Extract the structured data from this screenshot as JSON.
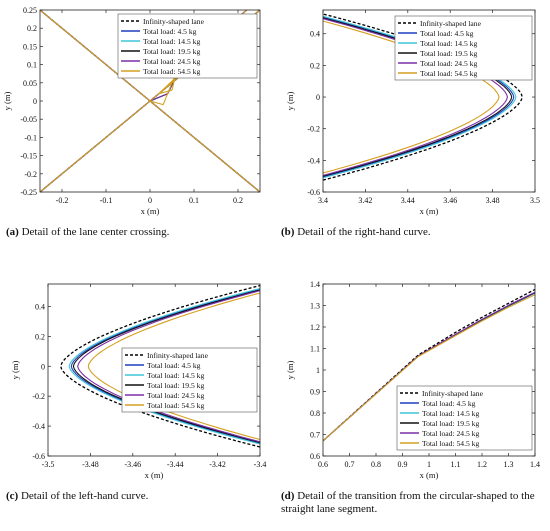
{
  "legend_labels": [
    "Infinity-shaped lane",
    "Total load: 4.5 kg",
    "Total load: 14.5 kg",
    "Total load: 19.5 kg",
    "Total load: 24.5 kg",
    "Total load: 54.5 kg"
  ],
  "captions": [
    {
      "letter": "(a)",
      "text": " Detail of the lane center crossing."
    },
    {
      "letter": "(b)",
      "text": " Detail of the right-hand curve."
    },
    {
      "letter": "(c)",
      "text": " Detail of the left-hand curve."
    },
    {
      "letter": "(d)",
      "text": " Detail of the transition from the circular-shaped to the straight lane segment."
    }
  ],
  "chart_data": [
    {
      "type": "line",
      "panel": "a",
      "xlabel": "x (m)",
      "ylabel": "y (m)",
      "xlim": [
        -0.25,
        0.25
      ],
      "ylim": [
        -0.25,
        0.25
      ],
      "xticks": [
        -0.2,
        -0.1,
        0,
        0.1,
        0.2
      ],
      "xticklabels": [
        "-0.2",
        "-0.1",
        "0",
        "0.1",
        "0.2"
      ],
      "yticks": [
        -0.25,
        -0.2,
        -0.15,
        -0.1,
        -0.05,
        0,
        0.05,
        0.1,
        0.15,
        0.2,
        0.25
      ],
      "yticklabels": [
        "-0.25",
        "-0.2",
        "-0.15",
        "-0.1",
        "-0.05",
        "0",
        "0.05",
        "0.1",
        "0.15",
        "0.2",
        "0.25"
      ],
      "legend_position": "top-right",
      "series": [
        {
          "name": "Infinity-shaped lane",
          "color": "#000000",
          "dash": true,
          "segments": [
            [
              [
                -0.25,
                -0.25
              ],
              [
                0.25,
                0.25
              ]
            ],
            [
              [
                -0.25,
                0.25
              ],
              [
                0.25,
                -0.25
              ]
            ]
          ]
        },
        {
          "name": "Total load: 4.5 kg",
          "color": "#1f3fbf",
          "segments": [
            [
              [
                -0.25,
                -0.25
              ],
              [
                0.25,
                0.25
              ]
            ],
            [
              [
                -0.25,
                0.25
              ],
              [
                0.25,
                -0.25
              ]
            ],
            [
              [
                0,
                0
              ],
              [
                0.04,
                0.02
              ],
              [
                0.07,
                0.09
              ],
              [
                0.22,
                0.25
              ]
            ]
          ]
        },
        {
          "name": "Total load: 14.5 kg",
          "color": "#3fc6d8",
          "segments": [
            [
              [
                -0.25,
                -0.25
              ],
              [
                0.25,
                0.25
              ]
            ],
            [
              [
                -0.25,
                0.25
              ],
              [
                0.25,
                -0.25
              ]
            ],
            [
              [
                0,
                0
              ],
              [
                0.04,
                0.02
              ],
              [
                0.07,
                0.09
              ],
              [
                0.22,
                0.25
              ]
            ]
          ]
        },
        {
          "name": "Total load: 19.5 kg",
          "color": "#111111",
          "segments": [
            [
              [
                -0.25,
                -0.25
              ],
              [
                0.25,
                0.25
              ]
            ],
            [
              [
                -0.25,
                0.25
              ],
              [
                0.25,
                -0.25
              ]
            ],
            [
              [
                0,
                0
              ],
              [
                0.04,
                0.02
              ],
              [
                0.07,
                0.095
              ],
              [
                0.22,
                0.25
              ]
            ]
          ]
        },
        {
          "name": "Total load: 24.5 kg",
          "color": "#7b2fa8",
          "segments": [
            [
              [
                -0.25,
                -0.25
              ],
              [
                0.25,
                0.25
              ]
            ],
            [
              [
                -0.25,
                0.25
              ],
              [
                0.25,
                -0.25
              ]
            ],
            [
              [
                0,
                0
              ],
              [
                0.04,
                0.02
              ],
              [
                0.07,
                0.1
              ],
              [
                0.22,
                0.25
              ]
            ]
          ]
        },
        {
          "name": "Total load: 54.5 kg",
          "color": "#d4a020",
          "segments": [
            [
              [
                -0.25,
                -0.25
              ],
              [
                0.25,
                0.25
              ]
            ],
            [
              [
                -0.25,
                0.25
              ],
              [
                0.25,
                -0.25
              ]
            ],
            [
              [
                0,
                0
              ],
              [
                0.03,
                -0.01
              ],
              [
                0.06,
                0.08
              ],
              [
                0.07,
                0.13
              ],
              [
                0.05,
                0.03
              ],
              [
                0.02,
                0.02
              ],
              [
                0.22,
                0.25
              ]
            ]
          ]
        }
      ]
    },
    {
      "type": "line",
      "panel": "b",
      "xlabel": "x (m)",
      "ylabel": "y (m)",
      "xlim": [
        3.4,
        3.5
      ],
      "ylim": [
        -0.6,
        0.55
      ],
      "xticks": [
        3.4,
        3.42,
        3.44,
        3.46,
        3.48,
        3.5
      ],
      "xticklabels": [
        "3.4",
        "3.42",
        "3.44",
        "3.46",
        "3.48",
        "3.5"
      ],
      "yticks": [
        -0.6,
        -0.4,
        -0.2,
        0,
        0.2,
        0.4
      ],
      "yticklabels": [
        "-0.6",
        "-0.4",
        "-0.2",
        "0",
        "0.2",
        "0.4"
      ],
      "legend_position": "top-right",
      "series": [
        {
          "name": "Infinity-shaped lane",
          "color": "#000000",
          "dash": true,
          "apex": 3.494,
          "edge_y": 0.525
        },
        {
          "name": "Total load: 4.5 kg",
          "color": "#1f3fbf",
          "apex": 3.49,
          "edge_y": 0.505
        },
        {
          "name": "Total load: 14.5 kg",
          "color": "#3fc6d8",
          "apex": 3.491,
          "edge_y": 0.51
        },
        {
          "name": "Total load: 19.5 kg",
          "color": "#111111",
          "apex": 3.489,
          "edge_y": 0.5
        },
        {
          "name": "Total load: 24.5 kg",
          "color": "#7b2fa8",
          "apex": 3.487,
          "edge_y": 0.495
        },
        {
          "name": "Total load: 54.5 kg",
          "color": "#d4a020",
          "apex": 3.483,
          "edge_y": 0.48
        }
      ]
    },
    {
      "type": "line",
      "panel": "c",
      "xlabel": "x (m)",
      "ylabel": "y (m)",
      "xlim": [
        -3.5,
        -3.4
      ],
      "ylim": [
        -0.6,
        0.55
      ],
      "xticks": [
        -3.5,
        -3.48,
        -3.46,
        -3.44,
        -3.42,
        -3.4
      ],
      "xticklabels": [
        "-3.5",
        "-3.48",
        "-3.46",
        "-3.44",
        "-3.42",
        "-3.4"
      ],
      "yticks": [
        -0.6,
        -0.4,
        -0.2,
        0,
        0.2,
        0.4
      ],
      "yticklabels": [
        "-0.6",
        "-0.4",
        "-0.2",
        "0",
        "0.2",
        "0.4"
      ],
      "legend_position": "center-right",
      "series": [
        {
          "name": "Infinity-shaped lane",
          "color": "#000000",
          "dash": true,
          "apex": -3.494,
          "edge_y": 0.54
        },
        {
          "name": "Total load: 4.5 kg",
          "color": "#1f3fbf",
          "apex": -3.489,
          "edge_y": 0.515
        },
        {
          "name": "Total load: 14.5 kg",
          "color": "#3fc6d8",
          "apex": -3.49,
          "edge_y": 0.52
        },
        {
          "name": "Total load: 19.5 kg",
          "color": "#111111",
          "apex": -3.488,
          "edge_y": 0.51
        },
        {
          "name": "Total load: 24.5 kg",
          "color": "#7b2fa8",
          "apex": -3.486,
          "edge_y": 0.505
        },
        {
          "name": "Total load: 54.5 kg",
          "color": "#d4a020",
          "apex": -3.481,
          "edge_y": 0.49
        }
      ]
    },
    {
      "type": "line",
      "panel": "d",
      "xlabel": "x (m)",
      "ylabel": "y (m)",
      "xlim": [
        0.6,
        1.4
      ],
      "ylim": [
        0.6,
        1.4
      ],
      "xticks": [
        0.6,
        0.7,
        0.8,
        0.9,
        1,
        1.1,
        1.2,
        1.3,
        1.4
      ],
      "xticklabels": [
        "0.6",
        "0.7",
        "0.8",
        "0.9",
        "1",
        "1.1",
        "1.2",
        "1.3",
        "1.4"
      ],
      "yticks": [
        0.6,
        0.7,
        0.8,
        0.9,
        1,
        1.1,
        1.2,
        1.3,
        1.4
      ],
      "yticklabels": [
        "0.6",
        "0.7",
        "0.8",
        "0.9",
        "1",
        "1.1",
        "1.2",
        "1.3",
        "1.4"
      ],
      "legend_position": "bottom-right",
      "series": [
        {
          "name": "Infinity-shaped lane",
          "color": "#000000",
          "dash": true,
          "points": [
            [
              0.6,
              0.67
            ],
            [
              0.96,
              1.07
            ],
            [
              1.1,
              1.175
            ],
            [
              1.2,
              1.245
            ],
            [
              1.3,
              1.31
            ],
            [
              1.4,
              1.375
            ]
          ]
        },
        {
          "name": "Total load: 4.5 kg",
          "color": "#1f3fbf",
          "points": [
            [
              0.6,
              0.67
            ],
            [
              0.96,
              1.065
            ],
            [
              1.1,
              1.165
            ],
            [
              1.2,
              1.235
            ],
            [
              1.3,
              1.3
            ],
            [
              1.4,
              1.36
            ]
          ]
        },
        {
          "name": "Total load: 14.5 kg",
          "color": "#3fc6d8",
          "points": [
            [
              0.6,
              0.67
            ],
            [
              0.96,
              1.065
            ],
            [
              1.1,
              1.163
            ],
            [
              1.2,
              1.232
            ],
            [
              1.3,
              1.297
            ],
            [
              1.4,
              1.357
            ]
          ]
        },
        {
          "name": "Total load: 19.5 kg",
          "color": "#111111",
          "points": [
            [
              0.6,
              0.67
            ],
            [
              0.96,
              1.065
            ],
            [
              1.1,
              1.165
            ],
            [
              1.2,
              1.234
            ],
            [
              1.3,
              1.299
            ],
            [
              1.4,
              1.359
            ]
          ]
        },
        {
          "name": "Total load: 24.5 kg",
          "color": "#7b2fa8",
          "points": [
            [
              0.6,
              0.67
            ],
            [
              0.96,
              1.065
            ],
            [
              1.1,
              1.166
            ],
            [
              1.2,
              1.236
            ],
            [
              1.3,
              1.301
            ],
            [
              1.4,
              1.362
            ]
          ]
        },
        {
          "name": "Total load: 54.5 kg",
          "color": "#d4a020",
          "points": [
            [
              0.6,
              0.67
            ],
            [
              0.96,
              1.063
            ],
            [
              1.1,
              1.16
            ],
            [
              1.2,
              1.228
            ],
            [
              1.3,
              1.292
            ],
            [
              1.4,
              1.35
            ]
          ]
        }
      ]
    }
  ]
}
